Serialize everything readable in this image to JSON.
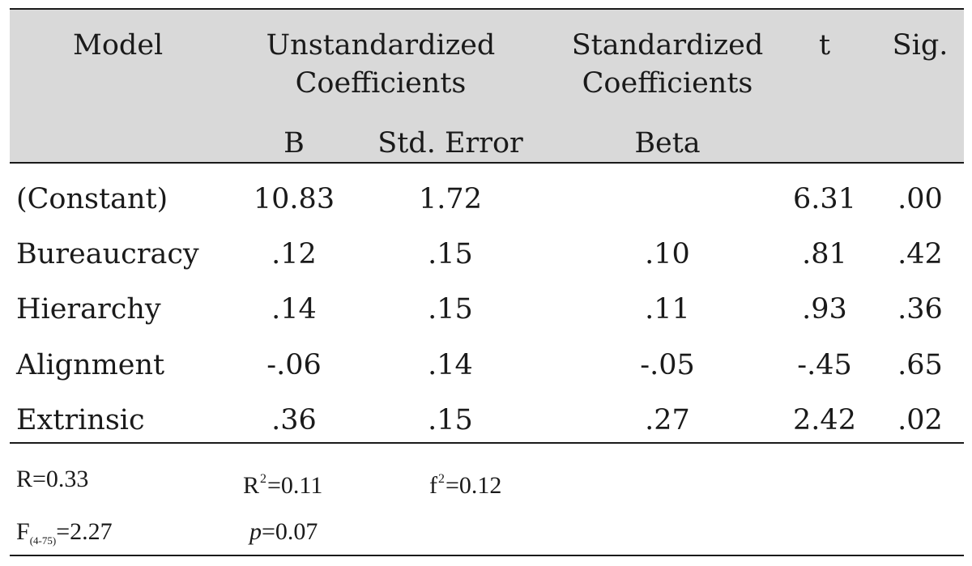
{
  "table": {
    "headers": {
      "model": "Model",
      "unstd_line1": "Unstandardized",
      "unstd_line2": "Coefficients",
      "std_line1": "Standardized",
      "std_line2": "Coefficients",
      "t": "t",
      "sig": "Sig.",
      "b": "B",
      "std_error": "Std. Error",
      "beta": "Beta"
    },
    "rows": [
      {
        "name": "(Constant)",
        "b": "10.83",
        "se": "1.72",
        "beta": "",
        "t": "6.31",
        "sig": ".00"
      },
      {
        "name": "Bureaucracy",
        "b": ".12",
        "se": ".15",
        "beta": ".10",
        "t": ".81",
        "sig": ".42"
      },
      {
        "name": "Hierarchy",
        "b": ".14",
        "se": ".15",
        "beta": ".11",
        "t": ".93",
        "sig": ".36"
      },
      {
        "name": "Alignment",
        "b": "-.06",
        "se": ".14",
        "beta": "-.05",
        "t": "-.45",
        "sig": ".65"
      },
      {
        "name": "Extrinsic",
        "b": ".36",
        "se": ".15",
        "beta": ".27",
        "t": "2.42",
        "sig": ".02"
      }
    ]
  },
  "footer": {
    "r": {
      "label": "R",
      "value": "=0.33"
    },
    "r2": {
      "label": "R",
      "sup": "2",
      "value": "=0.11"
    },
    "f2": {
      "label": "f",
      "sup": "2",
      "value": "=0.12"
    },
    "f_stat": {
      "label": "F",
      "sub": "(4-75)",
      "value": "=2.27"
    },
    "p": {
      "label": "p",
      "value": "=0.07"
    }
  }
}
